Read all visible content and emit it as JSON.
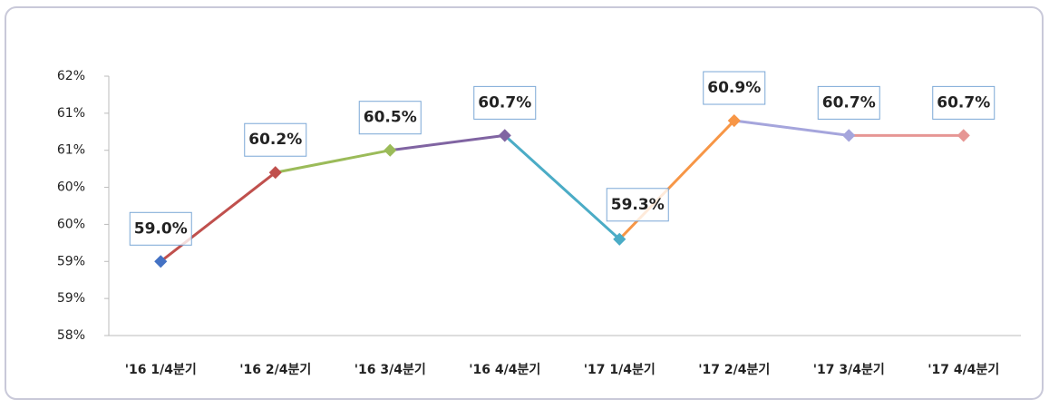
{
  "chart_data": {
    "type": "line",
    "categories": [
      "'16 1/4분기",
      "'16 2/4분기",
      "'16 3/4분기",
      "'16 4/4분기",
      "'17 1/4분기",
      "'17 2/4분기",
      "'17 3/4분기",
      "'17 4/4분기"
    ],
    "values": [
      59.0,
      60.2,
      60.5,
      60.7,
      59.3,
      60.9,
      60.7,
      60.7
    ],
    "value_labels": [
      "59.0%",
      "60.2%",
      "60.5%",
      "60.7%",
      "59.3%",
      "60.9%",
      "60.7%",
      "60.7%"
    ],
    "colors": [
      "#4472c4",
      "#c0504d",
      "#9bbb59",
      "#8064a2",
      "#4bacc6",
      "#f79646",
      "#a5a5dc",
      "#e69694"
    ],
    "ylim": [
      58,
      61.5
    ],
    "yticks": [
      {
        "value": 58,
        "label": "58%"
      },
      {
        "value": 58.5,
        "label": "59%"
      },
      {
        "value": 59,
        "label": "59%"
      },
      {
        "value": 59.5,
        "label": "60%"
      },
      {
        "value": 60,
        "label": "60%"
      },
      {
        "value": 60.5,
        "label": "61%"
      },
      {
        "value": 61,
        "label": "61%"
      },
      {
        "value": 61.5,
        "label": "62%"
      }
    ]
  }
}
